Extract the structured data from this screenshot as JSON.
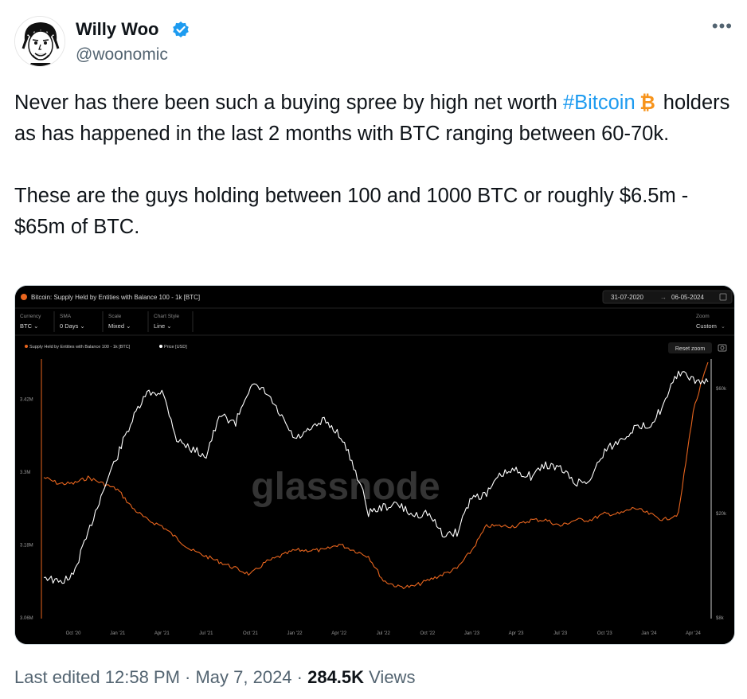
{
  "author": {
    "name": "Willy Woo",
    "handle": "@woonomic",
    "verified": true
  },
  "tweet": {
    "line1": "Never has there been such a buying spree by high net worth ",
    "hashtag": "#Bitcoin",
    "line1b": "holders as has happened in the last 2 months with BTC ranging between 60-70k.",
    "line2": "These are the guys holding between 100 and 1000 BTC or roughly $6.5m - $65m of BTC."
  },
  "meta": {
    "edited": "Last edited 12:58 PM · May 7, 2024 · ",
    "views_count": "284.5K",
    "views_label": " Views"
  },
  "colors": {
    "accent": "#1d9bf0",
    "supply_series": "#e8651e",
    "price_series": "#ffffff",
    "chart_bg": "#000000"
  },
  "chart_header": {
    "title": "Bitcoin: Supply Held by Entities with Balance 100 - 1k [BTC]",
    "date_from": "31-07-2020",
    "date_to": "06-05-2024",
    "controls": [
      {
        "label": "Currency",
        "value": "BTC"
      },
      {
        "label": "SMA",
        "value": "0 Days"
      },
      {
        "label": "Scale",
        "value": "Mixed"
      },
      {
        "label": "Chart Style",
        "value": "Line"
      }
    ],
    "zoom_label": "Zoom",
    "zoom_value": "Custom",
    "reset_zoom": "Reset zoom",
    "watermark": "glassnode"
  },
  "chart_data": {
    "type": "line",
    "title": "Bitcoin: Supply Held by Entities with Balance 100 - 1k [BTC]",
    "x_ticks": [
      "Oct '20",
      "Jan '21",
      "Apr '21",
      "Jul '21",
      "Oct '21",
      "Jan '22",
      "Apr '22",
      "Jul '22",
      "Oct '22",
      "Jan '23",
      "Apr '23",
      "Jul '23",
      "Oct '23",
      "Jan '24",
      "Apr '24"
    ],
    "y_left_ticks": [
      "3.42M",
      "3.3M",
      "3.18M",
      "3.06M"
    ],
    "y_right_ticks": [
      "$60k",
      "$20k",
      "$8k"
    ],
    "y_left_range": [
      3.06,
      3.48
    ],
    "series": [
      {
        "name": "Supply Held by Entities with Balance 100 - 1k [BTC]",
        "color": "#e8651e",
        "x": [
          "2020-08",
          "2020-09",
          "2020-10",
          "2020-11",
          "2020-12",
          "2021-01",
          "2021-02",
          "2021-03",
          "2021-04",
          "2021-05",
          "2021-06",
          "2021-07",
          "2021-08",
          "2021-09",
          "2021-10",
          "2021-11",
          "2021-12",
          "2022-01",
          "2022-02",
          "2022-03",
          "2022-04",
          "2022-05",
          "2022-06",
          "2022-07",
          "2022-08",
          "2022-09",
          "2022-10",
          "2022-11",
          "2022-12",
          "2023-01",
          "2023-02",
          "2023-03",
          "2023-04",
          "2023-05",
          "2023-06",
          "2023-07",
          "2023-08",
          "2023-09",
          "2023-10",
          "2023-11",
          "2023-12",
          "2024-01",
          "2024-02",
          "2024-03",
          "2024-04",
          "2024-05"
        ],
        "values": [
          3.29,
          3.28,
          3.28,
          3.29,
          3.28,
          3.27,
          3.24,
          3.22,
          3.21,
          3.19,
          3.17,
          3.16,
          3.15,
          3.14,
          3.13,
          3.15,
          3.16,
          3.17,
          3.17,
          3.17,
          3.18,
          3.17,
          3.16,
          3.12,
          3.11,
          3.11,
          3.12,
          3.13,
          3.14,
          3.17,
          3.21,
          3.21,
          3.21,
          3.22,
          3.22,
          3.21,
          3.22,
          3.22,
          3.23,
          3.23,
          3.24,
          3.23,
          3.22,
          3.23,
          3.4,
          3.48
        ]
      },
      {
        "name": "Price [USD]",
        "color": "#ffffff",
        "x": [
          "2020-08",
          "2020-09",
          "2020-10",
          "2020-11",
          "2020-12",
          "2021-01",
          "2021-02",
          "2021-03",
          "2021-04",
          "2021-05",
          "2021-06",
          "2021-07",
          "2021-08",
          "2021-09",
          "2021-10",
          "2021-11",
          "2021-12",
          "2022-01",
          "2022-02",
          "2022-03",
          "2022-04",
          "2022-05",
          "2022-06",
          "2022-07",
          "2022-08",
          "2022-09",
          "2022-10",
          "2022-11",
          "2022-12",
          "2023-01",
          "2023-02",
          "2023-03",
          "2023-04",
          "2023-05",
          "2023-06",
          "2023-07",
          "2023-08",
          "2023-09",
          "2023-10",
          "2023-11",
          "2023-12",
          "2024-01",
          "2024-02",
          "2024-03",
          "2024-04",
          "2024-05"
        ],
        "values": [
          11500,
          10800,
          11500,
          16500,
          24000,
          33000,
          45000,
          57000,
          58000,
          38000,
          35000,
          33000,
          47000,
          44000,
          61000,
          58000,
          47000,
          38000,
          41000,
          45000,
          40000,
          30000,
          20000,
          21000,
          21500,
          19500,
          20000,
          16500,
          16800,
          23000,
          23500,
          28000,
          29000,
          27500,
          30500,
          29500,
          26000,
          26500,
          34500,
          37500,
          42000,
          43000,
          51000,
          69000,
          64000,
          63000
        ]
      }
    ],
    "legend": [
      "Supply Held by Entities with Balance 100 - 1k [BTC]",
      "Price [USD]"
    ],
    "legend_position": "top-left",
    "grid": false
  }
}
